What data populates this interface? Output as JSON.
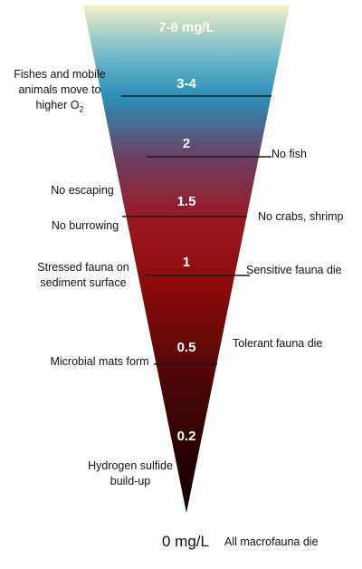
{
  "levels": {
    "l1": "7-8 mg/L",
    "l2": "3-4",
    "l3": "2",
    "l4": "1.5",
    "l5": "1",
    "l6": "0.5",
    "l7": "0.2",
    "bottom": "0 mg/L"
  },
  "left_labels": {
    "fishes_line1": "Fishes and mobile",
    "fishes_line2": "animals move to",
    "fishes_line3_base": "higher O",
    "fishes_line3_sub": "2",
    "no_escaping": "No escaping",
    "no_burrowing": "No burrowing",
    "stressed_line1": "Stressed fauna on",
    "stressed_line2": "sediment surface",
    "microbial": "Microbial mats form",
    "hydrogen_line1": "Hydrogen sulfide",
    "hydrogen_line2": "build-up"
  },
  "right_labels": {
    "no_fish": "No fish",
    "no_crabs": "No crabs, shrimp",
    "sensitive": "Sensitive fauna die",
    "tolerant": "Tolerant fauna die",
    "all_die": "All macrofauna die"
  },
  "colors": {
    "top": "#f3f0c6",
    "blue": "#2b8fb8",
    "purple": "#6b3f63",
    "red": "#8b0a0a",
    "dark": "#2a0606",
    "bottom": "#0d0000",
    "divider": "#1a1a1a"
  }
}
